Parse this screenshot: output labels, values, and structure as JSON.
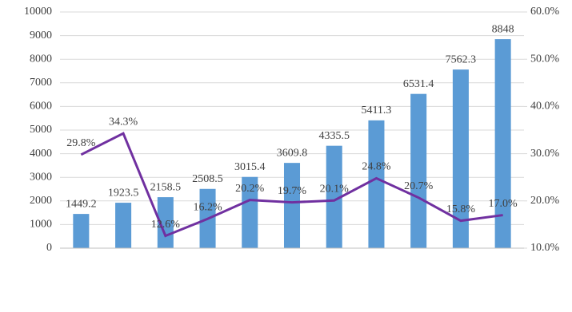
{
  "chart_data": {
    "type": "bar-line",
    "categories": [
      null,
      null,
      null,
      null,
      null,
      null,
      null,
      null,
      null,
      null,
      null
    ],
    "series": [
      {
        "type": "bar",
        "color": "#5b9bd5",
        "values": [
          1449.2,
          1923.5,
          2158.5,
          2508.5,
          3015.4,
          3609.8,
          4335.5,
          5411.3,
          6531.4,
          7562.3,
          8848
        ]
      },
      {
        "type": "line",
        "axis": "y2",
        "color": "#7030a0",
        "values": [
          29.8,
          34.3,
          12.6,
          16.2,
          20.2,
          19.7,
          20.1,
          24.8,
          20.7,
          15.8,
          17.0
        ],
        "value_labels": [
          "29.8%",
          "34.3%",
          "12.6%",
          "16.2%",
          "20.2%",
          "19.7%",
          "20.1%",
          "24.8%",
          "20.7%",
          "15.8%",
          "17.0%"
        ]
      }
    ],
    "ylim": [
      0,
      10000
    ],
    "yticks": [
      0,
      1000,
      2000,
      3000,
      4000,
      5000,
      6000,
      7000,
      8000,
      9000,
      10000
    ],
    "y2lim": [
      10,
      60
    ],
    "y2ticks": [
      {
        "value": 10,
        "label": "10.0%"
      },
      {
        "value": 20,
        "label": "20.0%"
      },
      {
        "value": 30,
        "label": "30.0%"
      },
      {
        "value": 40,
        "label": "40.0%"
      },
      {
        "value": 50,
        "label": "50.0%"
      },
      {
        "value": 60,
        "label": "60.0%"
      }
    ],
    "grid": true
  }
}
